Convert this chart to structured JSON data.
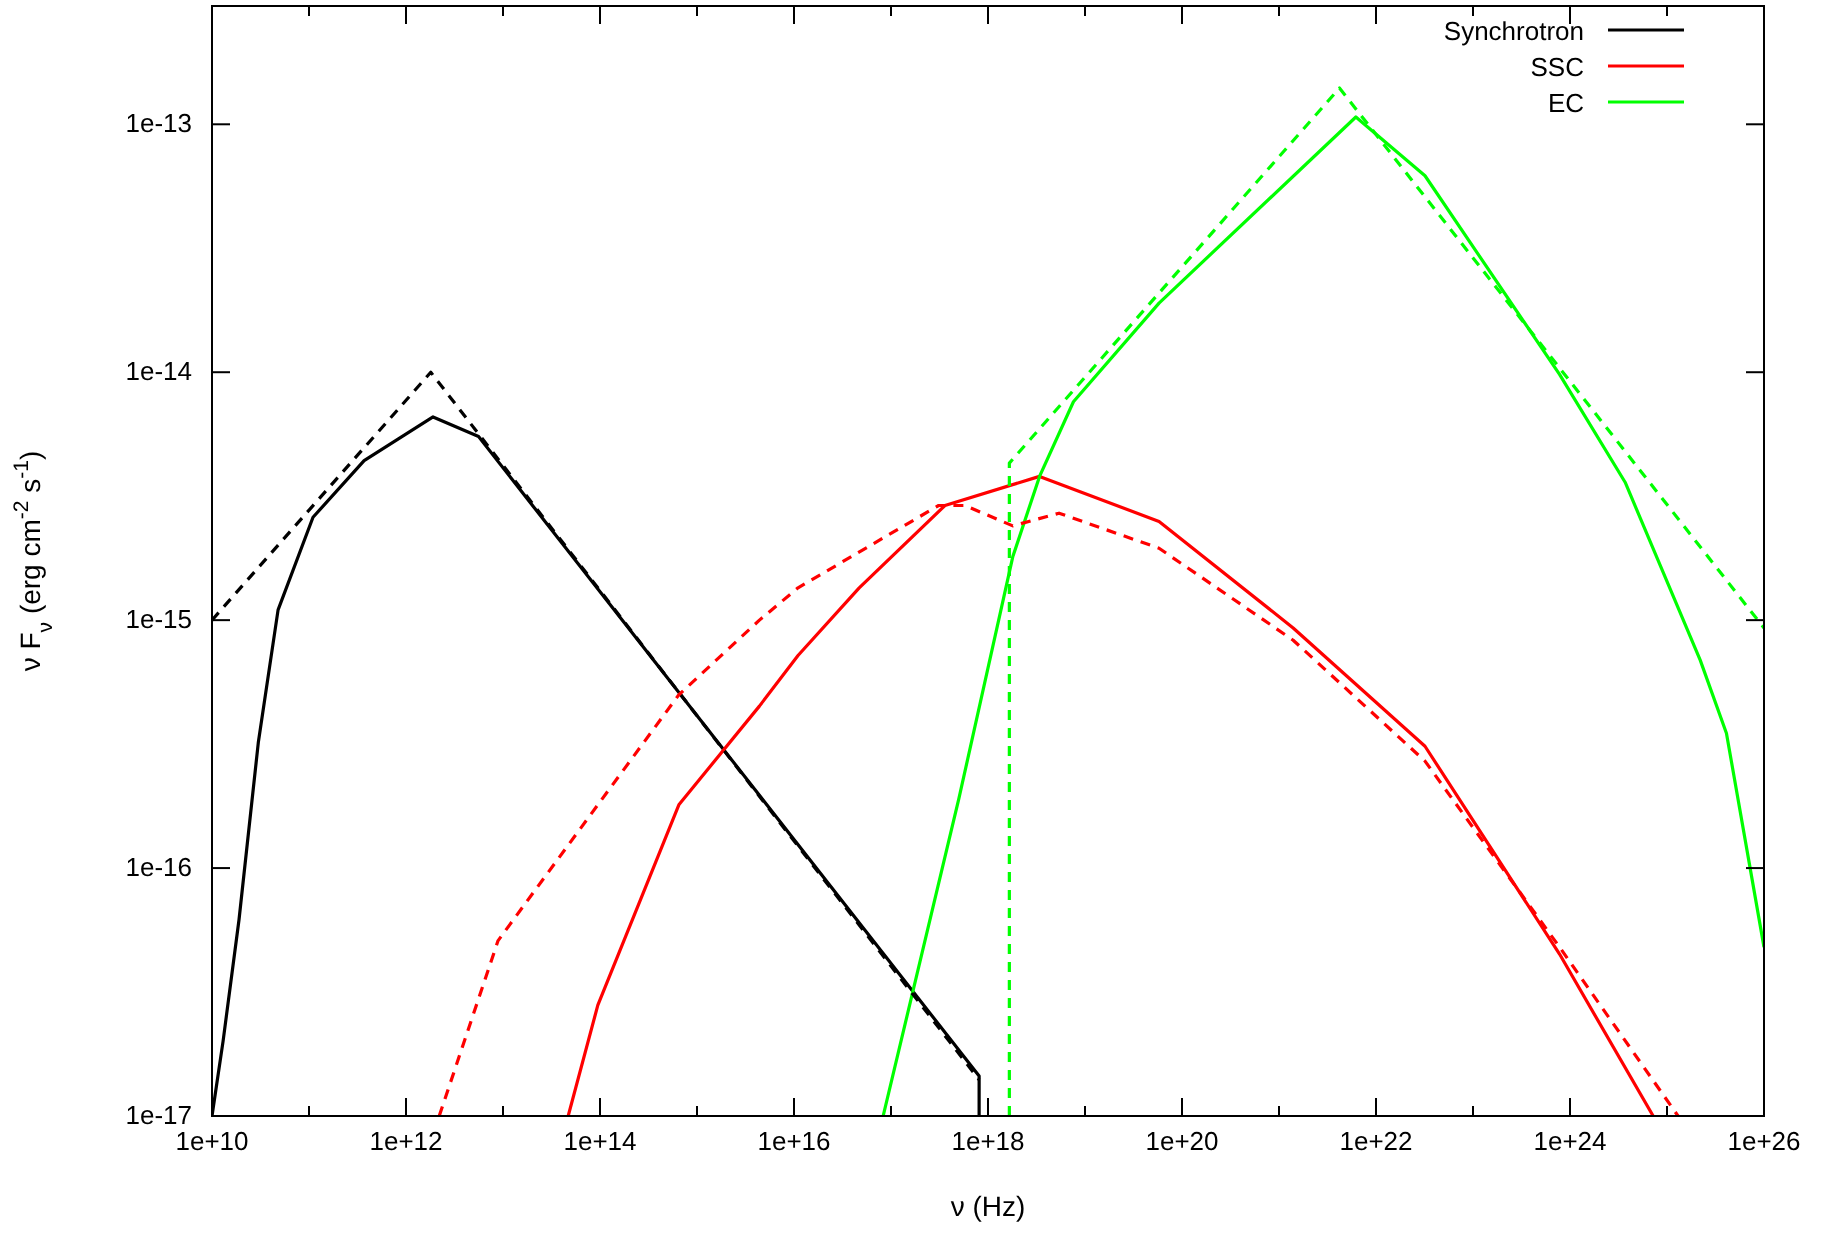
{
  "chart_data": {
    "type": "line",
    "xlabel": "ν (Hz)",
    "ylabel": "ν F$_{ν}$ (erg cm$^{-2}$ s$^{-1}$)",
    "log": "xy",
    "grid": false,
    "legend": "top right",
    "marker": "none",
    "xlim": [
      10000000000.0,
      1e+26
    ],
    "ylim": [
      1e-17,
      3e-13
    ],
    "xticks": [
      {
        "value": 10000000000.0,
        "label": "1e+10"
      },
      {
        "value": 100000000000.0,
        "label": null
      },
      {
        "value": 1000000000000.0,
        "label": "1e+12"
      },
      {
        "value": 10000000000000.0,
        "label": null
      },
      {
        "value": 100000000000000.0,
        "label": "1e+14"
      },
      {
        "value": 1000000000000000.0,
        "label": null
      },
      {
        "value": 1e+16,
        "label": "1e+16"
      },
      {
        "value": 1e+17,
        "label": null
      },
      {
        "value": 1e+18,
        "label": "1e+18"
      },
      {
        "value": 1e+19,
        "label": null
      },
      {
        "value": 1e+20,
        "label": "1e+20"
      },
      {
        "value": 1e+21,
        "label": null
      },
      {
        "value": 1e+22,
        "label": "1e+22"
      },
      {
        "value": 1e+23,
        "label": null
      },
      {
        "value": 1e+24,
        "label": "1e+24"
      },
      {
        "value": 1e+25,
        "label": null
      },
      {
        "value": 1e+26,
        "label": "1e+26"
      }
    ],
    "yticks": [
      {
        "value": 1e-17,
        "label": "1e-17"
      },
      {
        "value": 1e-16,
        "label": "1e-16"
      },
      {
        "value": 1e-15,
        "label": "1e-15"
      },
      {
        "value": 1e-14,
        "label": "1e-14"
      },
      {
        "value": 1e-13,
        "label": "1e-13"
      }
    ],
    "series": [
      {
        "name": "Synchrotron",
        "color": "#000000",
        "line_style": "solid",
        "x": [
          10000000000.0,
          13000000000.0,
          19000000000.0,
          30000000000.0,
          48000000000.0,
          110000000000.0,
          370000000000.0,
          1900000000000.0,
          5600000000000.0,
          8.1e+17,
          8.1e+17
        ],
        "values": [
          1e-17,
          2e-17,
          6.2e-17,
          3.2e-16,
          1.1e-15,
          2.6e-15,
          4.4e-15,
          6.6e-15,
          5.5e-15,
          1.45e-17,
          1e-17
        ]
      },
      {
        "name": "SSC",
        "color": "#ff0000",
        "line_style": "solid",
        "x": [
          47000000000000.0,
          95000000000000.0,
          650000000000000.0,
          4400000000000000.0,
          1.1e+16,
          4.7e+16,
          3.6e+17,
          3.4e+18,
          5.8e+19,
          1.4e+21,
          3.2e+22,
          7.8e+23,
          7.2e+24
        ],
        "values": [
          1e-17,
          2.8e-17,
          1.8e-16,
          4.5e-16,
          7.2e-16,
          1.35e-15,
          2.9e-15,
          3.8e-15,
          2.5e-15,
          9.3e-16,
          3.1e-16,
          4.5e-17,
          1e-17
        ]
      },
      {
        "name": "EC",
        "color": "#00ff00",
        "line_style": "solid",
        "x": [
          8.3e+16,
          5e+17,
          1.8e+18,
          3.4e+18,
          7.6e+18,
          5.8e+19,
          6.2e+21,
          3.2e+22,
          7.8e+23,
          3.7e+24,
          2.2e+25,
          4.1e+25,
          1e+26
        ],
        "values": [
          1e-17,
          1.9e-16,
          1.8e-15,
          3.8e-15,
          7.6e-15,
          1.9e-14,
          1.07e-13,
          6.2e-14,
          9.8e-15,
          3.6e-15,
          6.9e-16,
          3.5e-16,
          4.8e-17
        ]
      },
      {
        "color": "#000000",
        "line_style": "dashed",
        "x": [
          10000000000.0,
          1800000000000.0,
          8.1e+17
        ],
        "values": [
          1e-15,
          1e-14,
          1.4e-17
        ]
      },
      {
        "color": "#ff0000",
        "line_style": "dashed",
        "x": [
          2200000000000.0,
          8900000000000.0,
          95000000000000.0,
          650000000000000.0,
          4400000000000000.0,
          1.1e+16,
          3.1e+17,
          5.8e+17,
          1.8e+18,
          5.4e+18,
          5.8e+19,
          1.4e+21,
          3.2e+22,
          7.8e+23,
          1.3e+25
        ],
        "values": [
          1e-17,
          5.1e-17,
          1.8e-16,
          5e-16,
          1e-15,
          1.35e-15,
          2.9e-15,
          2.9e-15,
          2.4e-15,
          2.7e-15,
          1.95e-15,
          8.3e-16,
          2.7e-16,
          4.8e-17,
          1e-17
        ]
      },
      {
        "color": "#00ff00",
        "line_style": "dashed",
        "x": [
          1.66e+18,
          1.66e+18,
          4.2e+21,
          1e+26
        ],
        "values": [
          1e-17,
          4.3e-15,
          1.4e-13,
          9.3e-16
        ]
      }
    ]
  }
}
